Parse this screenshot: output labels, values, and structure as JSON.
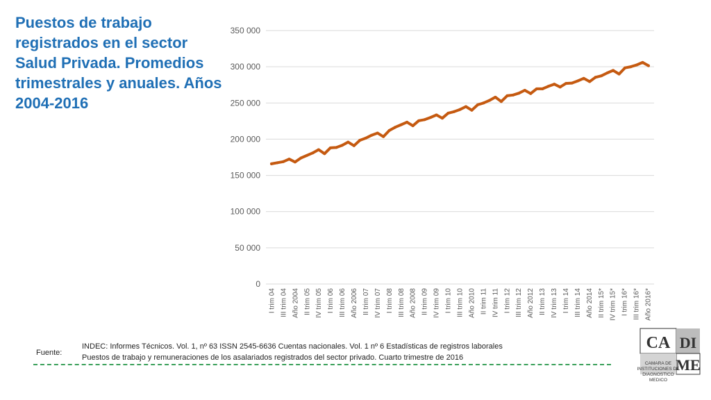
{
  "title": "Puestos de trabajo registrados en el sector Salud Privada. Promedios trimestrales y anuales. Años 2004-2016",
  "colors": {
    "title": "#1f6fb5",
    "line": "#c55a11",
    "grid": "#d9d9d9",
    "axis_text": "#595959",
    "divider": "#3aa05a"
  },
  "chart_data": {
    "type": "line",
    "title": "",
    "xlabel": "",
    "ylabel": "",
    "ylim": [
      0,
      350000
    ],
    "yticks": [
      0,
      50000,
      100000,
      150000,
      200000,
      250000,
      300000,
      350000
    ],
    "ytick_labels": [
      "0",
      "50 000",
      "100 000",
      "150 000",
      "200 000",
      "250 000",
      "300 000",
      "350 000"
    ],
    "grid": true,
    "legend": "none",
    "xtick_labels": [
      "I trim 04",
      "III trim 04",
      "Año 2004",
      "II trim 05",
      "IV trim 05",
      "I trim 06",
      "III trim 06",
      "Año 2006",
      "II trim 07",
      "IV trim 07",
      "I trim 08",
      "III trim 08",
      "Año 2008",
      "II trim 09",
      "IV trim 09",
      "I trim 10",
      "III trim 10",
      "Año 2010",
      "II trim 11",
      "IV trim 11",
      "I trim 12",
      "III trim 12",
      "Año 2012",
      "II trim 13",
      "IV trim 13",
      "I trim 14",
      "III trim 14",
      "Año 2014",
      "II trim 15*",
      "IV trim 15*",
      "I trim 16*",
      "III trim 16*",
      "Año 2016*"
    ],
    "values": [
      166000,
      167500,
      169000,
      172500,
      168500,
      174000,
      177500,
      181000,
      185500,
      180000,
      188000,
      188500,
      191500,
      196000,
      191000,
      198500,
      201500,
      205500,
      208500,
      203500,
      212000,
      216500,
      220000,
      223500,
      218500,
      225500,
      227000,
      230000,
      233500,
      229000,
      236000,
      238000,
      241000,
      245000,
      240000,
      247500,
      250000,
      253500,
      258000,
      252000,
      260000,
      261000,
      263500,
      267500,
      263000,
      269500,
      269500,
      273000,
      276000,
      272000,
      277000,
      277500,
      280500,
      284000,
      279500,
      285500,
      287500,
      291500,
      295000,
      290000,
      298500,
      300000,
      302500,
      306000,
      301500
    ]
  },
  "source": {
    "label": "Fuente:",
    "lines": [
      "INDEC: Informes Técnicos. Vol. 1, nº 63 ISSN 2545-6636 Cuentas nacionales. Vol. 1 nº 6 Estadísticas de registros laborales",
      "Puestos de trabajo y remuneraciones de los asalariados registrados del sector privado. Cuarto trimestre de 2016"
    ]
  },
  "logo": {
    "letters_top_left": "CA",
    "letters_top_right": "DI",
    "letters_bottom_right": "ME",
    "caption": [
      "CAMARA DE",
      "INSTITUCIONES DE",
      "DIAGNOSTICO",
      "MEDICO"
    ]
  }
}
